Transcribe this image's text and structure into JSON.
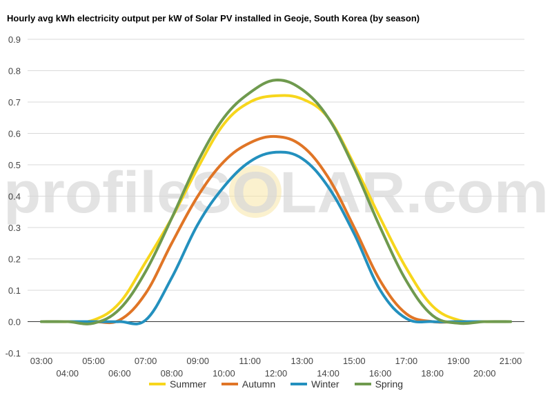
{
  "chart_data": {
    "type": "line",
    "title": "Hourly avg kWh electricity output per kW of Solar PV installed in Geoje, South Korea (by season)",
    "xlabel": "",
    "ylabel": "",
    "watermark": "profileSOLAR.com",
    "ylim": [
      -0.1,
      0.9
    ],
    "y_ticks": [
      "-0.1",
      "0.0",
      "0.1",
      "0.2",
      "0.3",
      "0.4",
      "0.5",
      "0.6",
      "0.7",
      "0.8",
      "0.9"
    ],
    "categories": [
      "03:00",
      "04:00",
      "05:00",
      "06:00",
      "07:00",
      "08:00",
      "09:00",
      "10:00",
      "11:00",
      "12:00",
      "13:00",
      "14:00",
      "15:00",
      "16:00",
      "17:00",
      "18:00",
      "19:00",
      "20:00",
      "21:00"
    ],
    "grid": true,
    "legend_position": "bottom",
    "series": [
      {
        "name": "Summer",
        "color": "#F7D61C",
        "values": [
          0,
          0,
          0.005,
          0.06,
          0.19,
          0.33,
          0.49,
          0.63,
          0.7,
          0.72,
          0.71,
          0.65,
          0.5,
          0.33,
          0.17,
          0.05,
          0.005,
          0,
          0
        ]
      },
      {
        "name": "Autumn",
        "color": "#E07526",
        "values": [
          0,
          0,
          0,
          0.005,
          0.09,
          0.25,
          0.4,
          0.51,
          0.57,
          0.59,
          0.56,
          0.46,
          0.3,
          0.13,
          0.025,
          0,
          0,
          0,
          0
        ]
      },
      {
        "name": "Winter",
        "color": "#2390BE",
        "values": [
          0,
          0,
          0,
          0,
          0.005,
          0.14,
          0.31,
          0.43,
          0.51,
          0.54,
          0.52,
          0.43,
          0.28,
          0.1,
          0.01,
          0,
          0,
          0,
          0
        ]
      },
      {
        "name": "Spring",
        "color": "#6F9A4E",
        "values": [
          0,
          0,
          -0.005,
          0.04,
          0.16,
          0.33,
          0.51,
          0.65,
          0.73,
          0.77,
          0.74,
          0.65,
          0.49,
          0.3,
          0.13,
          0.02,
          -0.005,
          0,
          0
        ]
      }
    ]
  }
}
